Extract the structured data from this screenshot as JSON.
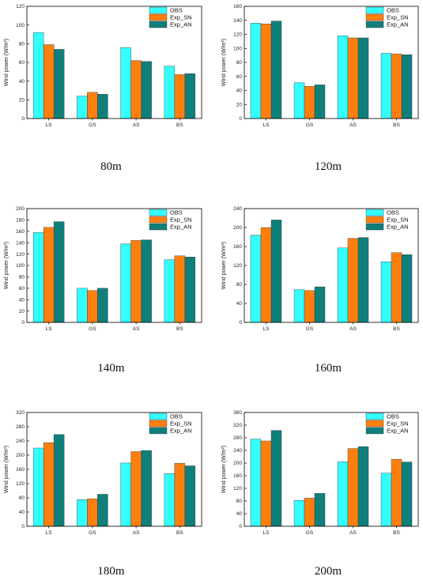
{
  "chart_data": [
    {
      "type": "bar",
      "caption": "80m",
      "ylabel": "Wind power (W/m²)",
      "categories": [
        "LS",
        "GS",
        "AS",
        "BS"
      ],
      "series": [
        {
          "name": "OBS",
          "values": [
            92,
            24,
            76,
            56
          ]
        },
        {
          "name": "Exp_SN",
          "values": [
            79,
            28,
            62,
            47
          ]
        },
        {
          "name": "Exp_AN",
          "values": [
            74,
            26,
            61,
            48
          ]
        }
      ],
      "ylim": [
        0,
        120
      ],
      "yticks": [
        0,
        20,
        40,
        60,
        80,
        100,
        120
      ],
      "legend": "top-right",
      "grid": false
    },
    {
      "type": "bar",
      "caption": "120m",
      "ylabel": "Wind power (W/m²)",
      "categories": [
        "LS",
        "GS",
        "AS",
        "BS"
      ],
      "series": [
        {
          "name": "OBS",
          "values": [
            136,
            51,
            118,
            93
          ]
        },
        {
          "name": "Exp_SN",
          "values": [
            135,
            46,
            115,
            92
          ]
        },
        {
          "name": "Exp_AN",
          "values": [
            139,
            48,
            115,
            91
          ]
        }
      ],
      "ylim": [
        0,
        160
      ],
      "yticks": [
        0,
        20,
        40,
        60,
        80,
        100,
        120,
        140,
        160
      ],
      "legend": "top-right",
      "grid": false
    },
    {
      "type": "bar",
      "caption": "140m",
      "ylabel": "Wind power (W/m²)",
      "categories": [
        "LS",
        "GS",
        "AS",
        "BS"
      ],
      "series": [
        {
          "name": "OBS",
          "values": [
            158,
            60,
            138,
            110
          ]
        },
        {
          "name": "Exp_SN",
          "values": [
            167,
            56,
            144,
            117
          ]
        },
        {
          "name": "Exp_AN",
          "values": [
            177,
            60,
            145,
            115
          ]
        }
      ],
      "ylim": [
        0,
        200
      ],
      "yticks": [
        0,
        20,
        40,
        60,
        80,
        100,
        120,
        140,
        160,
        180,
        200
      ],
      "legend": "top-right",
      "grid": false
    },
    {
      "type": "bar",
      "caption": "160m",
      "ylabel": "Wind power (W/m²)",
      "categories": [
        "LS",
        "GS",
        "AS",
        "BS"
      ],
      "series": [
        {
          "name": "OBS",
          "values": [
            184,
            69,
            157,
            128
          ]
        },
        {
          "name": "Exp_SN",
          "values": [
            200,
            67,
            177,
            147
          ]
        },
        {
          "name": "Exp_AN",
          "values": [
            216,
            75,
            179,
            143
          ]
        }
      ],
      "ylim": [
        0,
        240
      ],
      "yticks": [
        0,
        40,
        80,
        120,
        160,
        200,
        240
      ],
      "legend": "top-right",
      "grid": false
    },
    {
      "type": "bar",
      "caption": "180m",
      "ylabel": "Wind power (W/m²)",
      "categories": [
        "LS",
        "GS",
        "AS",
        "BS"
      ],
      "series": [
        {
          "name": "OBS",
          "values": [
            220,
            75,
            178,
            148
          ]
        },
        {
          "name": "Exp_SN",
          "values": [
            235,
            77,
            210,
            177
          ]
        },
        {
          "name": "Exp_AN",
          "values": [
            258,
            90,
            213,
            170
          ]
        }
      ],
      "ylim": [
        0,
        320
      ],
      "yticks": [
        0,
        40,
        80,
        120,
        160,
        200,
        240,
        280,
        320
      ],
      "legend": "top-right",
      "grid": false
    },
    {
      "type": "bar",
      "caption": "200m",
      "ylabel": "Wind power (W/m²)",
      "categories": [
        "LS",
        "GS",
        "AS",
        "BS"
      ],
      "series": [
        {
          "name": "OBS",
          "values": [
            276,
            82,
            204,
            168
          ]
        },
        {
          "name": "Exp_SN",
          "values": [
            270,
            89,
            246,
            212
          ]
        },
        {
          "name": "Exp_AN",
          "values": [
            303,
            104,
            252,
            203
          ]
        }
      ],
      "ylim": [
        0,
        360
      ],
      "yticks": [
        0,
        40,
        80,
        120,
        160,
        200,
        240,
        280,
        320,
        360
      ],
      "legend": "top-right",
      "grid": false
    }
  ],
  "colors": {
    "OBS": "#33ffff",
    "Exp_SN": "#ff7f0e",
    "Exp_AN": "#0f7f7b",
    "axis": "#000000",
    "bar_outline": "#333333"
  }
}
